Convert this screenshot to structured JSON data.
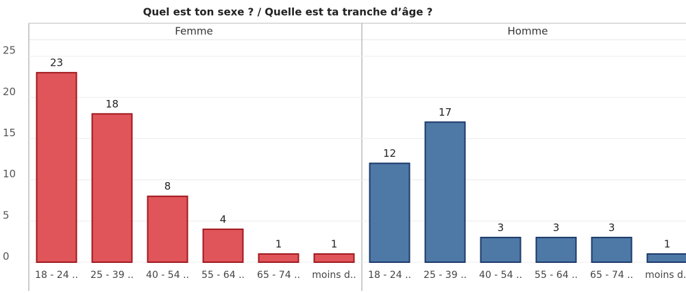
{
  "chart_data": {
    "type": "bar",
    "title": "Quel est ton sexe ? / Quelle est ta tranche d’âge ?",
    "categories": [
      "18 - 24 ..",
      "25 - 39 ..",
      "40 - 54 ..",
      "55 - 64 ..",
      "65 - 74 ..",
      "moins d.."
    ],
    "series": [
      {
        "name": "Femme",
        "color": "#e05559",
        "values": [
          23,
          18,
          8,
          4,
          1,
          1
        ]
      },
      {
        "name": "Homme",
        "color": "#4e79a7",
        "values": [
          12,
          17,
          3,
          3,
          3,
          1
        ]
      }
    ],
    "ylim": [
      0,
      27
    ],
    "yticks": [
      0,
      5,
      10,
      15,
      20,
      25
    ],
    "grid": true
  }
}
